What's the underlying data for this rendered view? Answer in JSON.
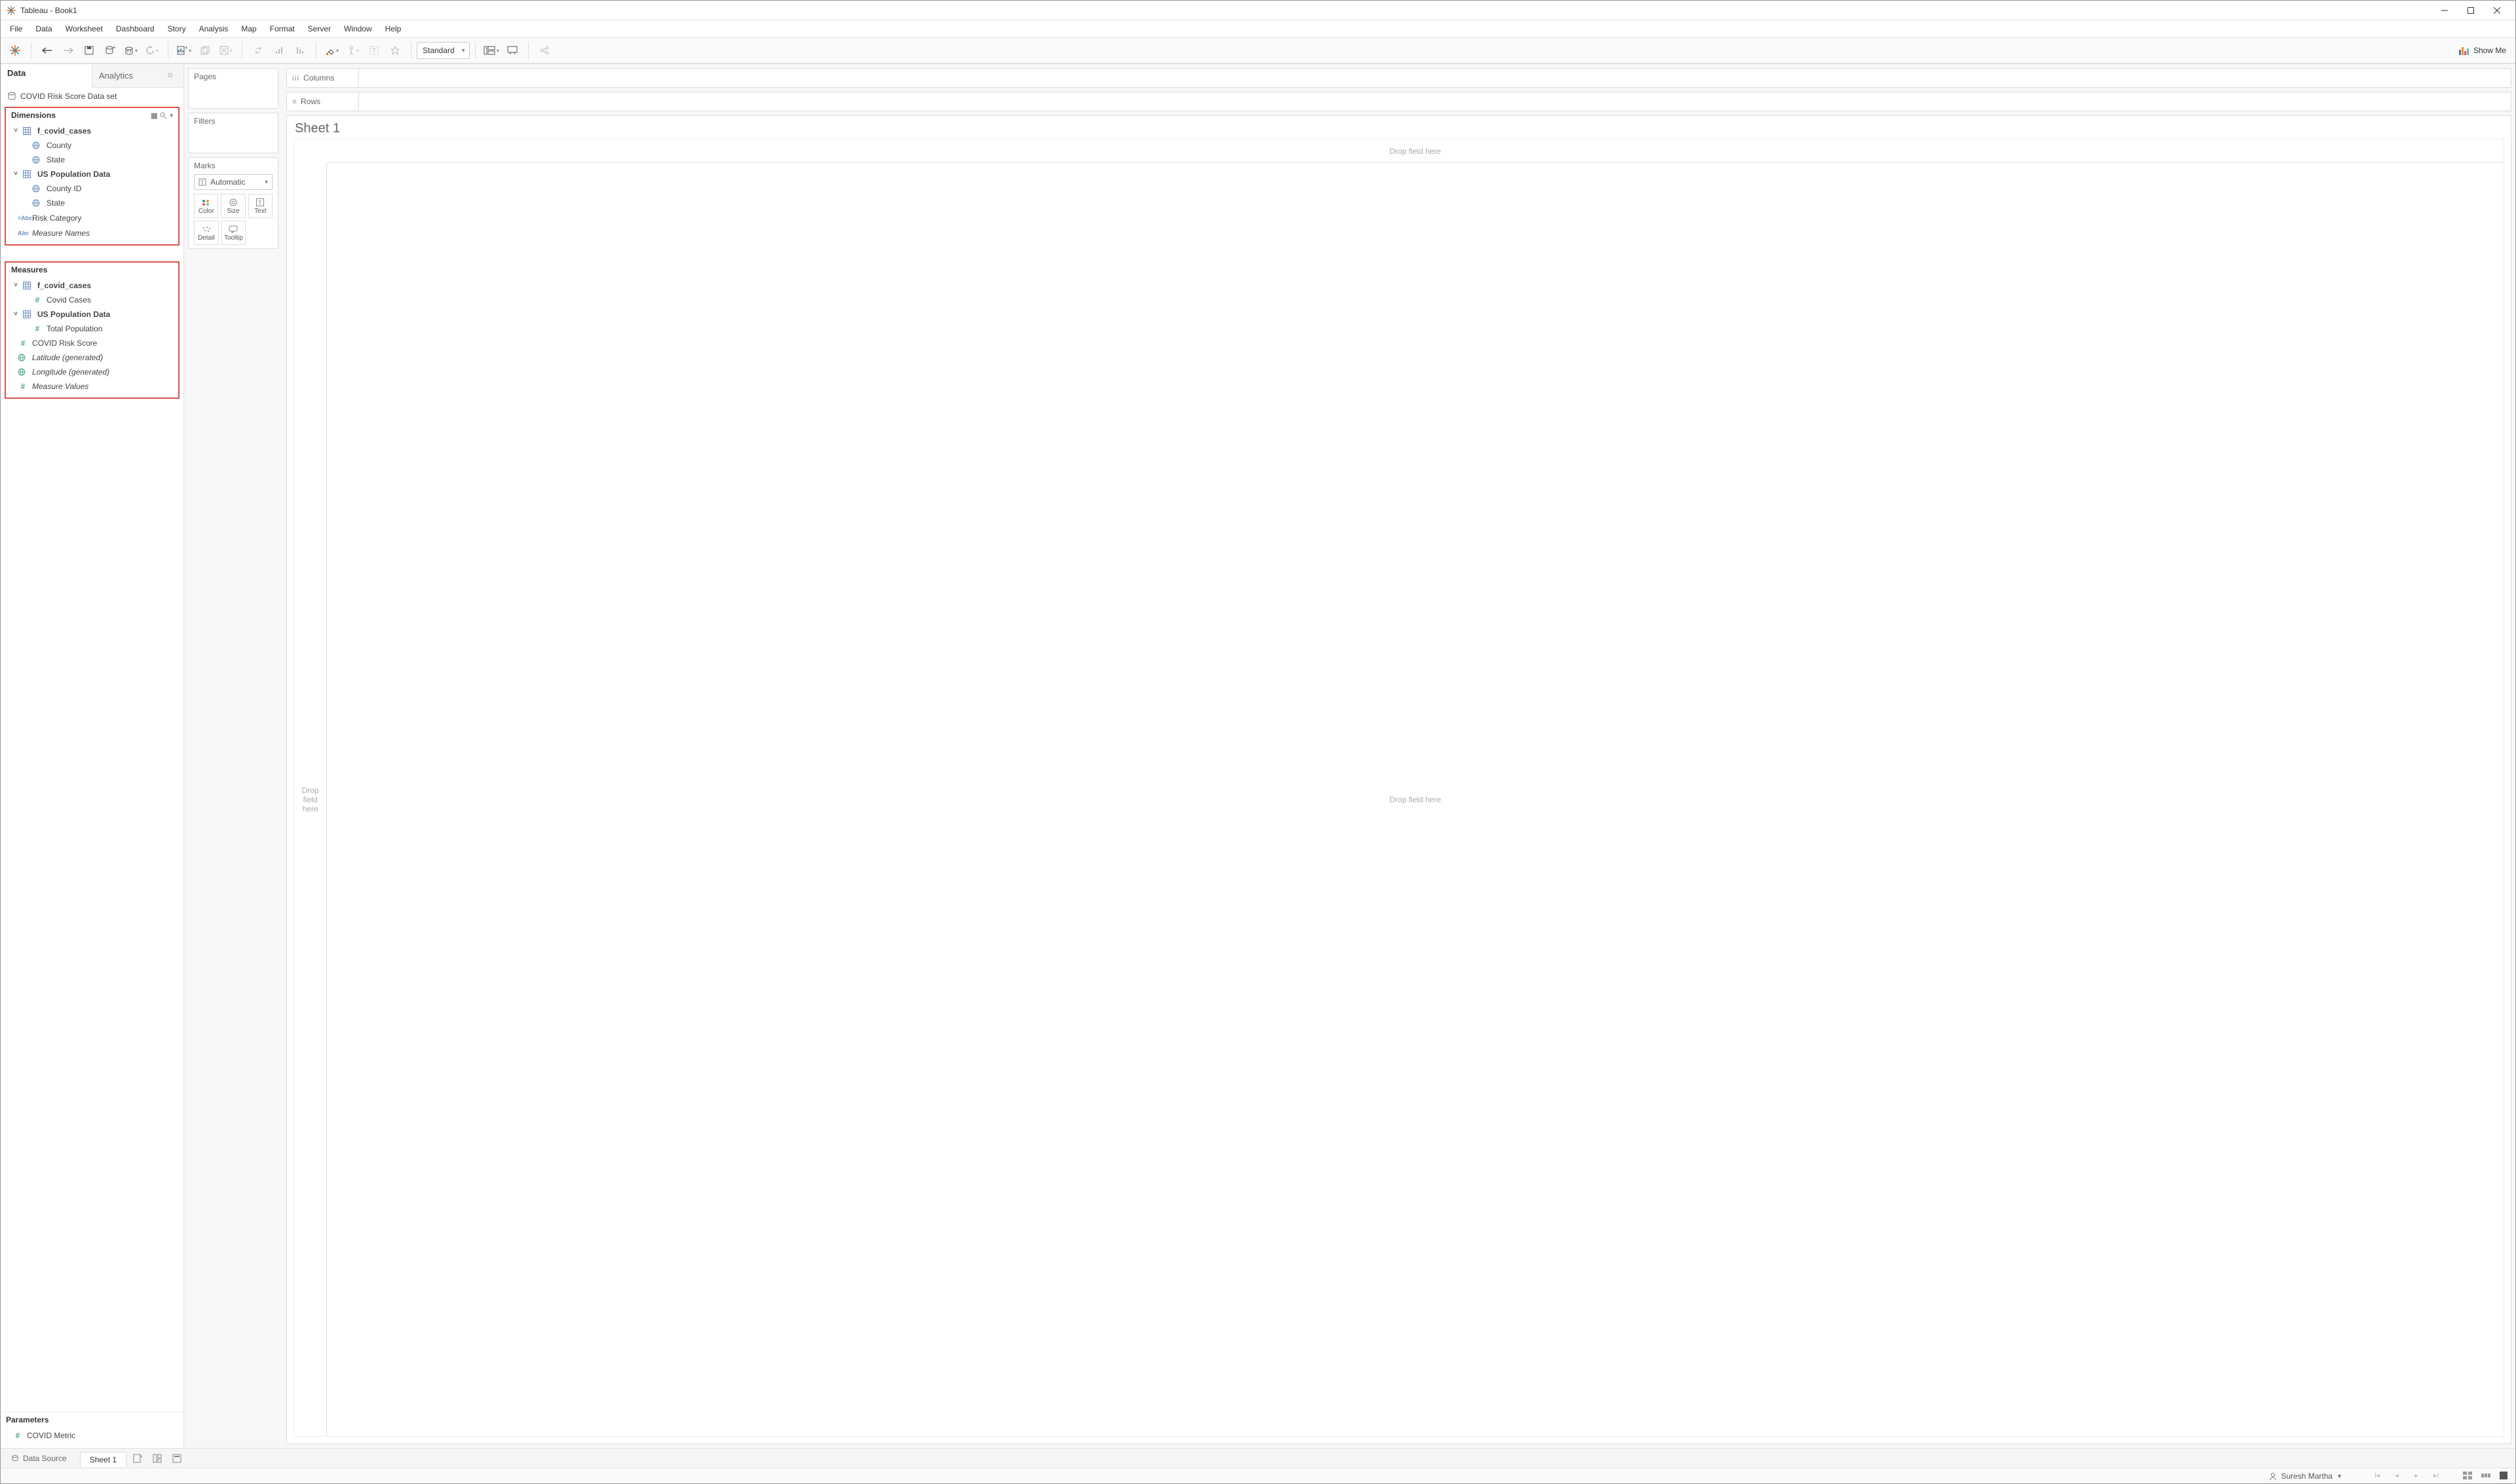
{
  "window": {
    "title": "Tableau - Book1"
  },
  "menu": [
    "File",
    "Data",
    "Worksheet",
    "Dashboard",
    "Story",
    "Analysis",
    "Map",
    "Format",
    "Server",
    "Window",
    "Help"
  ],
  "toolbar": {
    "fit_mode": "Standard",
    "showme": "Show Me"
  },
  "sidepanel": {
    "tabs": {
      "data": "Data",
      "analytics": "Analytics"
    },
    "datasource": "COVID Risk Score Data set",
    "dimensions_label": "Dimensions",
    "dimensions": {
      "groups": [
        {
          "name": "f_covid_cases",
          "fields": [
            {
              "icon": "globe",
              "label": "County"
            },
            {
              "icon": "globe",
              "label": "State"
            }
          ]
        },
        {
          "name": "US Population Data",
          "fields": [
            {
              "icon": "globe",
              "label": "County ID"
            },
            {
              "icon": "globe",
              "label": "State"
            }
          ]
        }
      ],
      "loose": [
        {
          "icon": "abc-calc",
          "label": "Risk Category"
        },
        {
          "icon": "abc",
          "label": "Measure Names",
          "italic": true
        }
      ]
    },
    "measures_label": "Measures",
    "measures": {
      "groups": [
        {
          "name": "f_covid_cases",
          "fields": [
            {
              "icon": "hash",
              "label": "Covid Cases"
            }
          ]
        },
        {
          "name": "US Population Data",
          "fields": [
            {
              "icon": "hash",
              "label": "Total Population"
            }
          ]
        }
      ],
      "loose": [
        {
          "icon": "hash",
          "label": "COVID Risk Score"
        },
        {
          "icon": "globe-g",
          "label": "Latitude (generated)",
          "italic": true
        },
        {
          "icon": "globe-g",
          "label": "Longitude (generated)",
          "italic": true
        },
        {
          "icon": "hash",
          "label": "Measure Values",
          "italic": true
        }
      ]
    },
    "parameters_label": "Parameters",
    "parameters": [
      {
        "icon": "hash",
        "label": "COVID Metric"
      }
    ]
  },
  "shelves": {
    "pages": "Pages",
    "filters": "Filters",
    "marks": "Marks",
    "marks_type": "Automatic",
    "mark_cells": {
      "color": "Color",
      "size": "Size",
      "text": "Text",
      "detail": "Detail",
      "tooltip": "Tooltip"
    }
  },
  "rowscols": {
    "columns": "Columns",
    "rows": "Rows"
  },
  "sheet": {
    "title": "Sheet 1",
    "drop_col": "Drop field here",
    "drop_row": "Drop\nfield\nhere",
    "drop_body": "Drop field here"
  },
  "bottom": {
    "datasource": "Data Source",
    "sheet_tab": "Sheet 1"
  },
  "status": {
    "user": "Suresh Martha"
  },
  "colors": {
    "highlight_red": "#d9534f",
    "dim_blue": "#6a8fbf",
    "meas_green": "#4ca685"
  }
}
